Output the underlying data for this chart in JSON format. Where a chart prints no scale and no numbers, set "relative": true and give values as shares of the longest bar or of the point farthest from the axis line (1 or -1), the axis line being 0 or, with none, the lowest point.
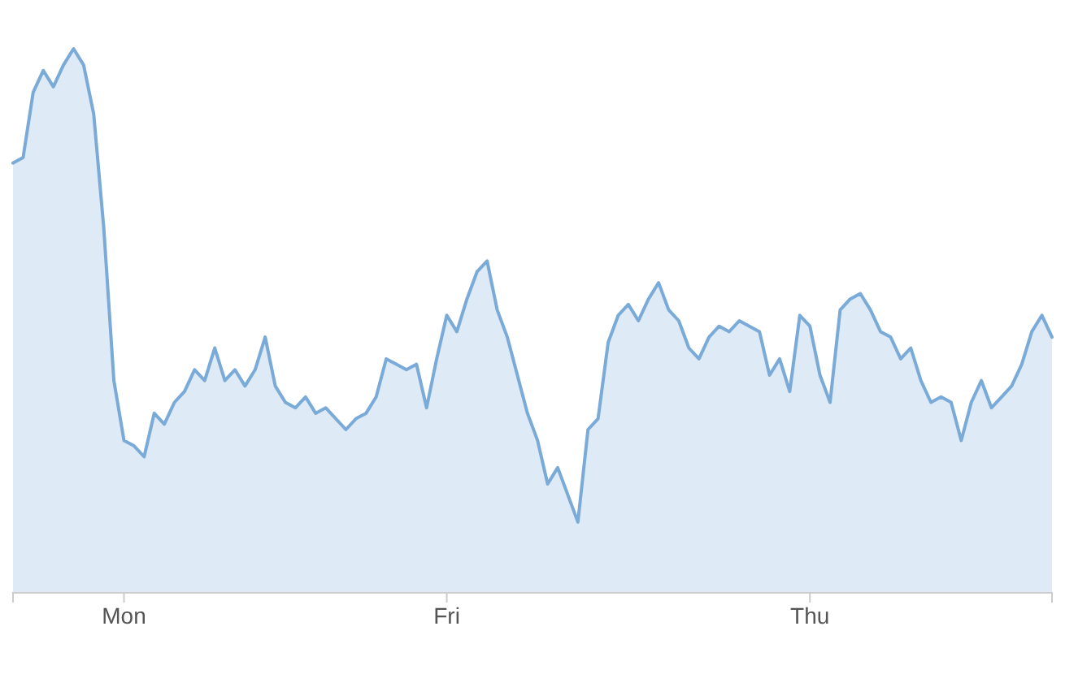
{
  "chart_data": {
    "type": "area",
    "relative": true,
    "categories": [
      null,
      null,
      null,
      null,
      null,
      null,
      null,
      null,
      null,
      null,
      null,
      "Mon",
      null,
      null,
      null,
      null,
      null,
      null,
      null,
      null,
      null,
      null,
      null,
      null,
      null,
      null,
      null,
      null,
      null,
      null,
      null,
      null,
      null,
      null,
      null,
      null,
      null,
      null,
      null,
      null,
      null,
      null,
      null,
      "Fri",
      null,
      null,
      null,
      null,
      null,
      null,
      null,
      null,
      null,
      null,
      null,
      null,
      null,
      null,
      null,
      null,
      null,
      null,
      null,
      null,
      null,
      null,
      null,
      null,
      null,
      null,
      null,
      null,
      null,
      null,
      null,
      null,
      null,
      null,
      null,
      "Thu",
      null,
      null,
      null,
      null,
      null,
      null,
      null,
      null,
      null,
      null,
      null,
      null,
      null,
      null,
      null,
      null,
      null,
      null,
      null,
      null,
      null,
      null,
      null,
      null
    ],
    "series": [
      {
        "color": "#7aaad8",
        "values": [
          0.79,
          0.8,
          0.92,
          0.96,
          0.93,
          0.97,
          1.0,
          0.97,
          0.88,
          0.67,
          0.39,
          0.28,
          0.27,
          0.25,
          0.33,
          0.31,
          0.35,
          0.37,
          0.41,
          0.39,
          0.45,
          0.39,
          0.41,
          0.38,
          0.41,
          0.47,
          0.38,
          0.35,
          0.34,
          0.36,
          0.33,
          0.34,
          0.32,
          0.3,
          0.32,
          0.33,
          0.36,
          0.43,
          0.42,
          0.41,
          0.42,
          0.34,
          0.43,
          0.51,
          0.48,
          0.54,
          0.59,
          0.61,
          0.52,
          0.47,
          0.4,
          0.33,
          0.28,
          0.2,
          0.23,
          0.18,
          0.13,
          0.3,
          0.32,
          0.46,
          0.51,
          0.53,
          0.5,
          0.54,
          0.57,
          0.52,
          0.5,
          0.45,
          0.43,
          0.47,
          0.49,
          0.48,
          0.5,
          0.49,
          0.48,
          0.4,
          0.43,
          0.37,
          0.51,
          0.49,
          0.4,
          0.35,
          0.52,
          0.54,
          0.55,
          0.52,
          0.48,
          0.47,
          0.43,
          0.45,
          0.39,
          0.35,
          0.36,
          0.35,
          0.28,
          0.35,
          0.39,
          0.34,
          0.36,
          0.38,
          0.42,
          0.48,
          0.51,
          0.47
        ]
      }
    ]
  }
}
